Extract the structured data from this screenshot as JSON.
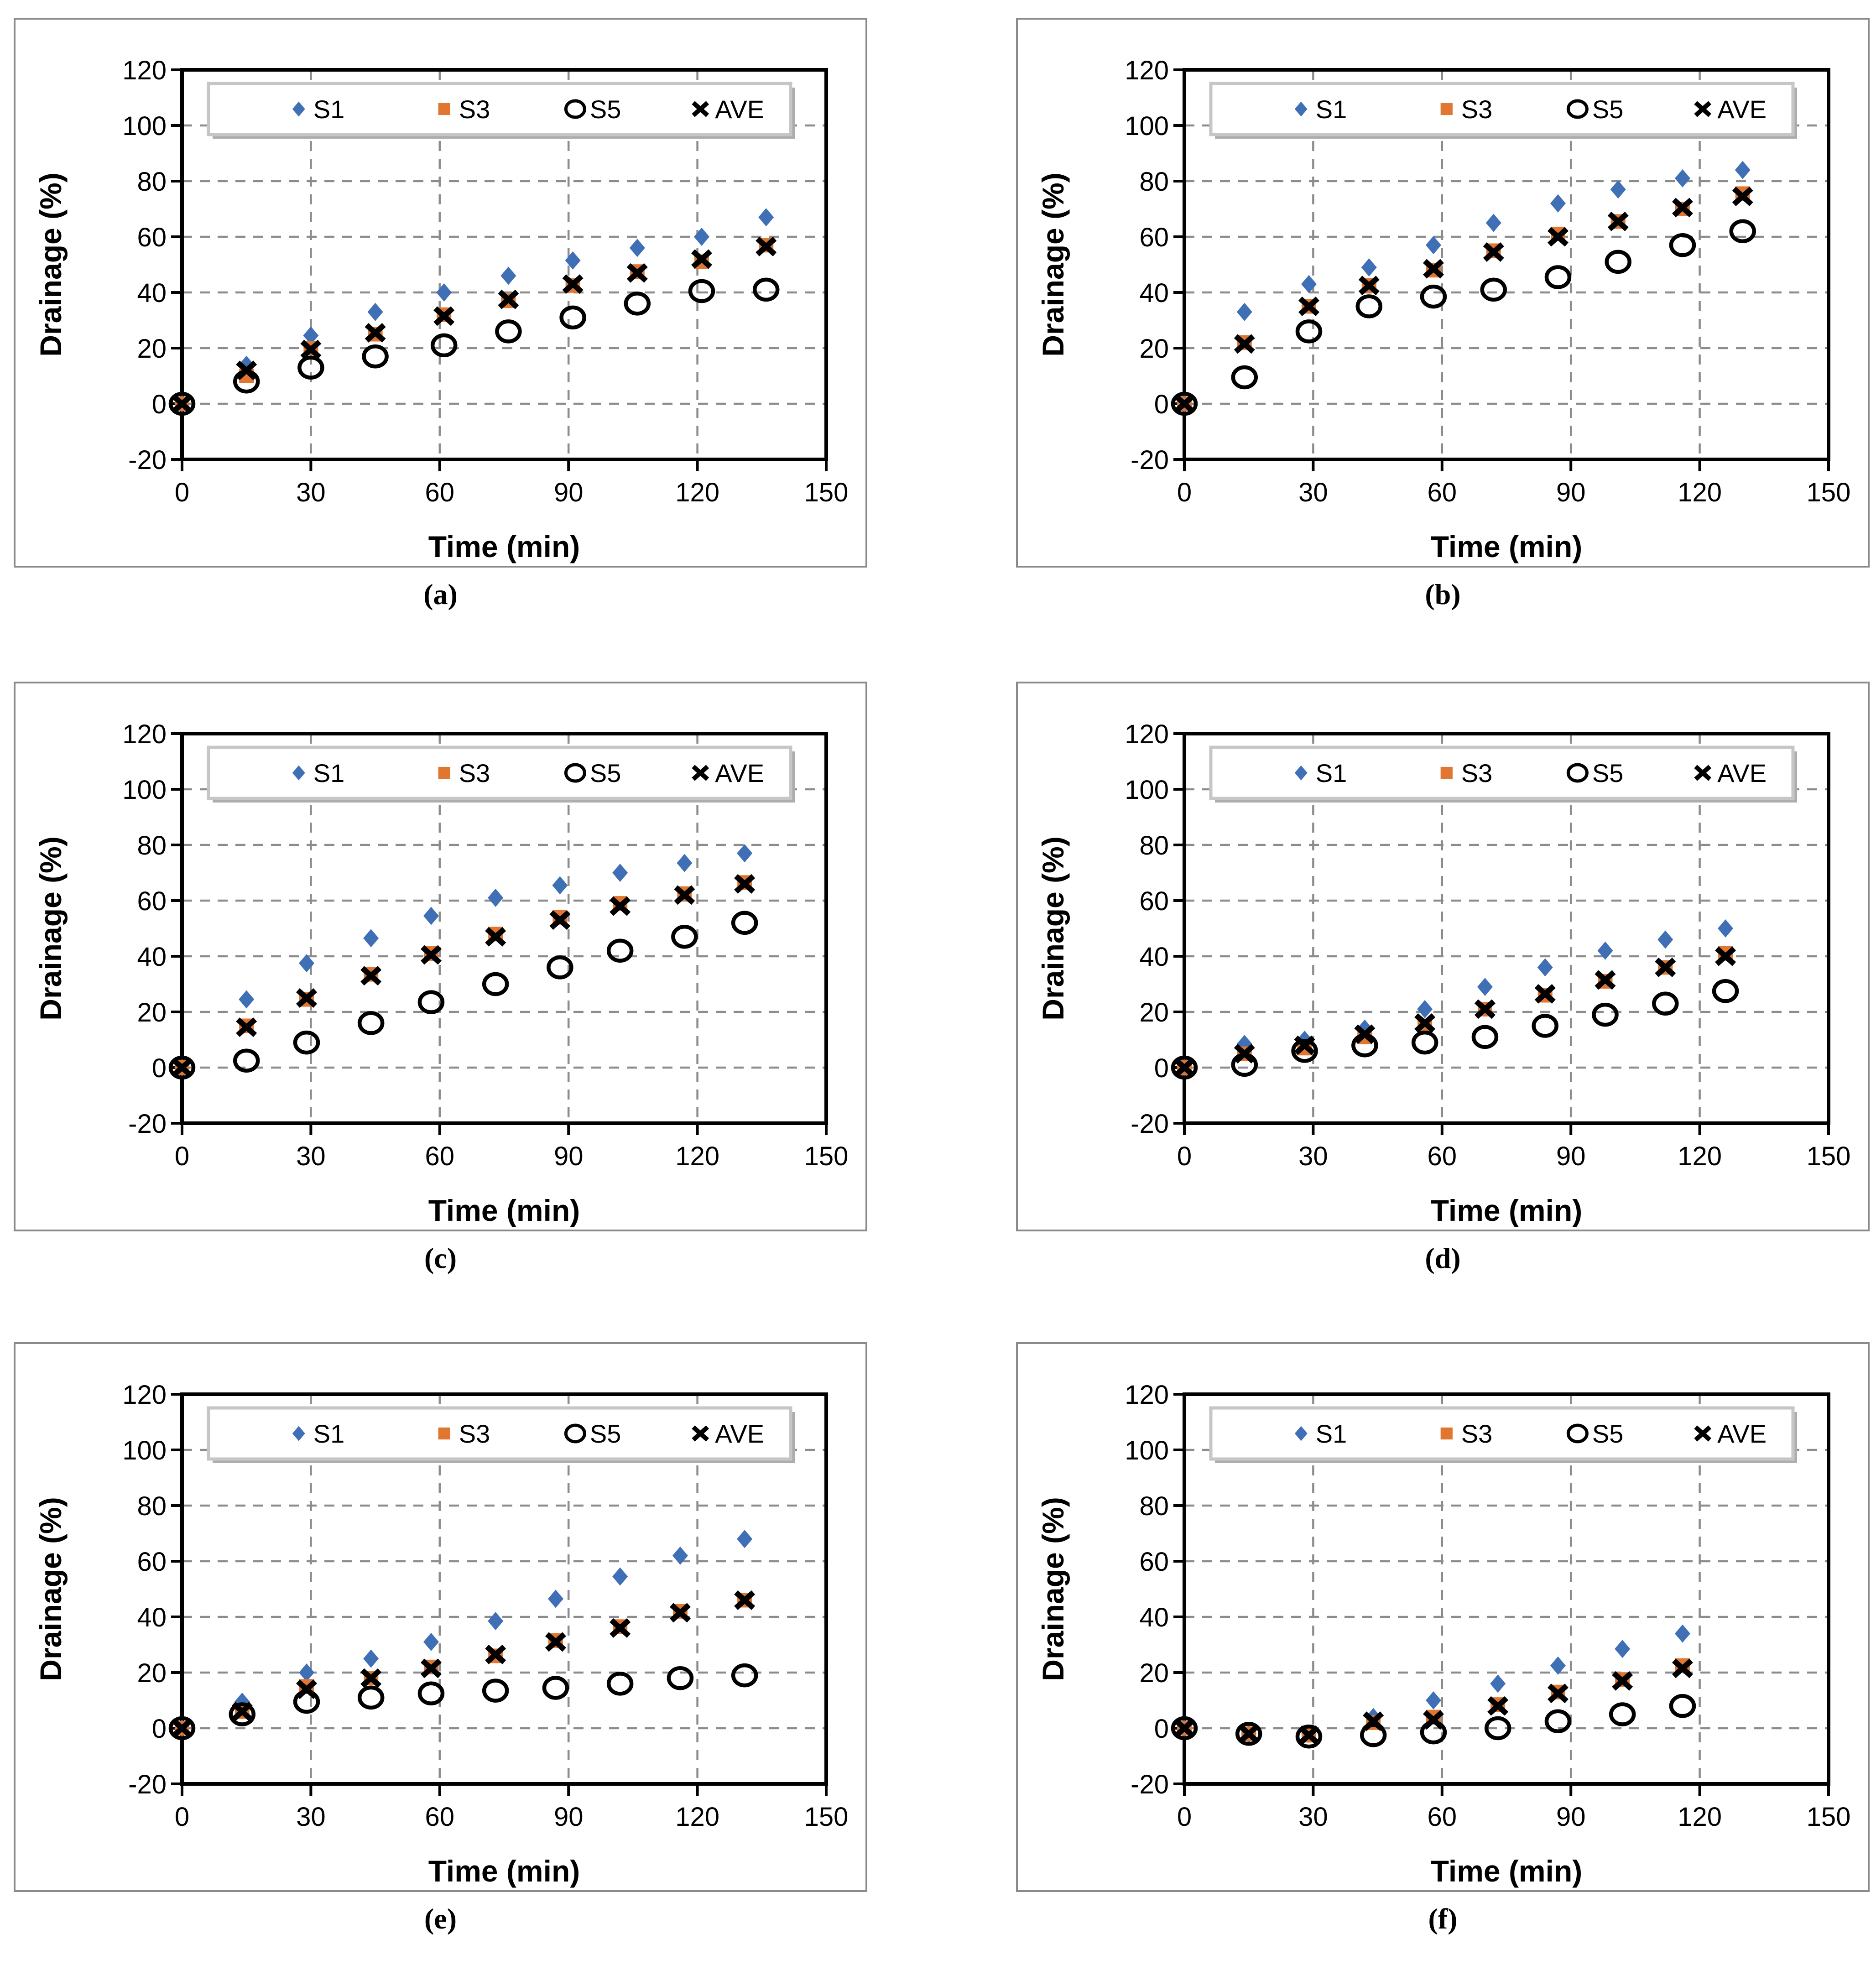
{
  "figure": {
    "panel_count": 6,
    "xlabel": "Time (min)",
    "ylabel": "Drainage (%)"
  },
  "styles": {
    "series_blue": "#3F6FB5",
    "series_orange": "#E0762F",
    "series_black": "#000000",
    "grid_color": "#8C8C8C",
    "plot_border_color": "#000000",
    "frame_border_color": "#8A8A8A",
    "legend_border_color": "#C6C6C6",
    "legend_shadow_color": "#ADADAD"
  },
  "chart_data": [
    {
      "type": "scatter",
      "panel_label": "(a)",
      "xlabel": "Time (min)",
      "ylabel": "Drainage (%)",
      "xlim": [
        0,
        150
      ],
      "ylim": [
        -20,
        120
      ],
      "xticks": [
        0,
        30,
        60,
        90,
        120,
        150
      ],
      "yticks": [
        -20,
        0,
        20,
        40,
        60,
        80,
        100,
        120
      ],
      "grid": true,
      "legend_position": "top-inside",
      "series": [
        {
          "name": "S1",
          "marker": "diamond",
          "color": "#3F6FB5",
          "x": [
            0,
            15,
            30,
            45,
            61,
            76,
            91,
            106,
            121,
            136
          ],
          "y": [
            0,
            14,
            24.5,
            33,
            40,
            46,
            51.5,
            56,
            60,
            67
          ]
        },
        {
          "name": "S3",
          "marker": "square",
          "color": "#E0762F",
          "x": [
            0,
            15,
            30,
            45,
            61,
            76,
            91,
            106,
            121,
            136
          ],
          "y": [
            0,
            10,
            20,
            25,
            32,
            37,
            42.5,
            47.5,
            51,
            57
          ]
        },
        {
          "name": "S5",
          "marker": "circle-open",
          "color": "#000000",
          "x": [
            0,
            15,
            30,
            45,
            61,
            76,
            91,
            106,
            121,
            136
          ],
          "y": [
            0,
            8,
            13,
            17,
            21,
            26,
            31,
            36,
            40.5,
            41
          ]
        },
        {
          "name": "AVE",
          "marker": "x",
          "color": "#000000",
          "x": [
            0,
            15,
            30,
            45,
            61,
            76,
            91,
            106,
            121,
            136
          ],
          "y": [
            0,
            12,
            19.5,
            25.5,
            31.5,
            37.5,
            43,
            47,
            52,
            56.5
          ]
        }
      ]
    },
    {
      "type": "scatter",
      "panel_label": "(b)",
      "xlabel": "Time (min)",
      "ylabel": "Drainage (%)",
      "xlim": [
        0,
        150
      ],
      "ylim": [
        -20,
        120
      ],
      "xticks": [
        0,
        30,
        60,
        90,
        120,
        150
      ],
      "yticks": [
        -20,
        0,
        20,
        40,
        60,
        80,
        100,
        120
      ],
      "grid": true,
      "legend_position": "top-inside",
      "series": [
        {
          "name": "S1",
          "marker": "diamond",
          "color": "#3F6FB5",
          "x": [
            0,
            14,
            29,
            43,
            58,
            72,
            87,
            101,
            116,
            130
          ],
          "y": [
            0,
            33,
            43,
            49,
            57,
            65,
            72,
            77,
            81,
            84
          ]
        },
        {
          "name": "S3",
          "marker": "square",
          "color": "#E0762F",
          "x": [
            0,
            14,
            29,
            43,
            58,
            72,
            87,
            101,
            116,
            130
          ],
          "y": [
            0,
            22,
            35,
            42.5,
            48,
            55,
            61,
            65.5,
            70,
            75.5
          ]
        },
        {
          "name": "S5",
          "marker": "circle-open",
          "color": "#000000",
          "x": [
            0,
            14,
            29,
            43,
            58,
            72,
            87,
            101,
            116,
            130
          ],
          "y": [
            0,
            9.5,
            26,
            35,
            38.5,
            41,
            45.5,
            51,
            57,
            62
          ]
        },
        {
          "name": "AVE",
          "marker": "x",
          "color": "#000000",
          "x": [
            0,
            14,
            29,
            43,
            58,
            72,
            87,
            101,
            116,
            130
          ],
          "y": [
            0,
            21.5,
            35,
            42.5,
            48.5,
            54.5,
            60,
            65.5,
            70.5,
            74.5
          ]
        }
      ]
    },
    {
      "type": "scatter",
      "panel_label": "(c)",
      "xlabel": "Time (min)",
      "ylabel": "Drainage (%)",
      "xlim": [
        0,
        150
      ],
      "ylim": [
        -20,
        120
      ],
      "xticks": [
        0,
        30,
        60,
        90,
        120,
        150
      ],
      "yticks": [
        -20,
        0,
        20,
        40,
        60,
        80,
        100,
        120
      ],
      "grid": true,
      "legend_position": "top-inside",
      "series": [
        {
          "name": "S1",
          "marker": "diamond",
          "color": "#3F6FB5",
          "x": [
            0,
            15,
            29,
            44,
            58,
            73,
            88,
            102,
            117,
            131
          ],
          "y": [
            0,
            24.5,
            37.5,
            46.5,
            54.5,
            61,
            65.5,
            70,
            73.5,
            77
          ]
        },
        {
          "name": "S3",
          "marker": "square",
          "color": "#E0762F",
          "x": [
            0,
            15,
            29,
            44,
            58,
            73,
            88,
            102,
            117,
            131
          ],
          "y": [
            0,
            15,
            24.5,
            33.5,
            41,
            48,
            54,
            59,
            62.5,
            66.5
          ]
        },
        {
          "name": "S5",
          "marker": "circle-open",
          "color": "#000000",
          "x": [
            0,
            15,
            29,
            44,
            58,
            73,
            88,
            102,
            117,
            131
          ],
          "y": [
            0,
            2.5,
            9,
            16,
            23.5,
            30,
            36,
            42,
            47,
            52
          ]
        },
        {
          "name": "AVE",
          "marker": "x",
          "color": "#000000",
          "x": [
            0,
            15,
            29,
            44,
            58,
            73,
            88,
            102,
            117,
            131
          ],
          "y": [
            0,
            14.5,
            25,
            33,
            40.5,
            47,
            53,
            58,
            62,
            66
          ]
        }
      ]
    },
    {
      "type": "scatter",
      "panel_label": "(d)",
      "xlabel": "Time (min)",
      "ylabel": "Drainage (%)",
      "xlim": [
        0,
        150
      ],
      "ylim": [
        -20,
        120
      ],
      "xticks": [
        0,
        30,
        60,
        90,
        120,
        150
      ],
      "yticks": [
        -20,
        0,
        20,
        40,
        60,
        80,
        100,
        120
      ],
      "grid": true,
      "legend_position": "top-inside",
      "series": [
        {
          "name": "S1",
          "marker": "diamond",
          "color": "#3F6FB5",
          "x": [
            0,
            14,
            28,
            42,
            56,
            70,
            84,
            98,
            112,
            126
          ],
          "y": [
            0,
            8.5,
            10,
            14,
            21,
            29,
            36,
            42,
            46,
            50
          ]
        },
        {
          "name": "S3",
          "marker": "square",
          "color": "#E0762F",
          "x": [
            0,
            14,
            28,
            42,
            56,
            70,
            84,
            98,
            112,
            126
          ],
          "y": [
            0,
            5,
            7,
            11,
            15,
            21,
            26,
            31,
            36,
            41
          ]
        },
        {
          "name": "S5",
          "marker": "circle-open",
          "color": "#000000",
          "x": [
            0,
            14,
            28,
            42,
            56,
            70,
            84,
            98,
            112,
            126
          ],
          "y": [
            0,
            1,
            6,
            8,
            9,
            11,
            15,
            19,
            23,
            27.5
          ]
        },
        {
          "name": "AVE",
          "marker": "x",
          "color": "#000000",
          "x": [
            0,
            14,
            28,
            42,
            56,
            70,
            84,
            98,
            112,
            126
          ],
          "y": [
            0,
            5,
            8,
            12,
            16,
            21,
            26.5,
            31.5,
            36,
            40
          ]
        }
      ]
    },
    {
      "type": "scatter",
      "panel_label": "(e)",
      "xlabel": "Time (min)",
      "ylabel": "Drainage (%)",
      "xlim": [
        0,
        150
      ],
      "ylim": [
        -20,
        120
      ],
      "xticks": [
        0,
        30,
        60,
        90,
        120,
        150
      ],
      "yticks": [
        -20,
        0,
        20,
        40,
        60,
        80,
        100,
        120
      ],
      "grid": true,
      "legend_position": "top-inside",
      "series": [
        {
          "name": "S1",
          "marker": "diamond",
          "color": "#3F6FB5",
          "x": [
            0,
            14,
            29,
            44,
            58,
            73,
            87,
            102,
            116,
            131
          ],
          "y": [
            0,
            9.5,
            20,
            25,
            31,
            38.5,
            46.5,
            54.5,
            62,
            68
          ]
        },
        {
          "name": "S3",
          "marker": "square",
          "color": "#E0762F",
          "x": [
            0,
            14,
            29,
            44,
            58,
            73,
            87,
            102,
            116,
            131
          ],
          "y": [
            0,
            6,
            15,
            18,
            22,
            26,
            31.5,
            36.5,
            42,
            46
          ]
        },
        {
          "name": "S5",
          "marker": "circle-open",
          "color": "#000000",
          "x": [
            0,
            14,
            29,
            44,
            58,
            73,
            87,
            102,
            116,
            131
          ],
          "y": [
            0,
            5,
            9.5,
            11,
            12.5,
            13.5,
            14.5,
            16,
            18,
            19
          ]
        },
        {
          "name": "AVE",
          "marker": "x",
          "color": "#000000",
          "x": [
            0,
            14,
            29,
            44,
            58,
            73,
            87,
            102,
            116,
            131
          ],
          "y": [
            0,
            6,
            14,
            18,
            21.5,
            26.5,
            31,
            36,
            41.5,
            46
          ]
        }
      ]
    },
    {
      "type": "scatter",
      "panel_label": "(f)",
      "xlabel": "Time (min)",
      "ylabel": "Drainage (%)",
      "xlim": [
        0,
        150
      ],
      "ylim": [
        -20,
        120
      ],
      "xticks": [
        0,
        30,
        60,
        90,
        120,
        150
      ],
      "yticks": [
        -20,
        0,
        20,
        40,
        60,
        80,
        100,
        120
      ],
      "grid": true,
      "legend_position": "top-inside",
      "series": [
        {
          "name": "S1",
          "marker": "diamond",
          "color": "#3F6FB5",
          "x": [
            0,
            15,
            29,
            44,
            58,
            73,
            87,
            102,
            116
          ],
          "y": [
            0,
            -2,
            -2,
            4,
            10,
            16,
            22.5,
            28.5,
            34
          ]
        },
        {
          "name": "S3",
          "marker": "square",
          "color": "#E0762F",
          "x": [
            0,
            15,
            29,
            44,
            58,
            73,
            87,
            102,
            116
          ],
          "y": [
            0,
            -2,
            -2.5,
            2,
            4,
            8.5,
            13,
            17.5,
            22.5
          ]
        },
        {
          "name": "S5",
          "marker": "circle-open",
          "color": "#000000",
          "x": [
            0,
            15,
            29,
            44,
            58,
            73,
            87,
            102,
            116
          ],
          "y": [
            0,
            -2,
            -3,
            -2.5,
            -1.5,
            0,
            2.5,
            5,
            8
          ]
        },
        {
          "name": "AVE",
          "marker": "x",
          "color": "#000000",
          "x": [
            0,
            15,
            29,
            44,
            58,
            73,
            87,
            102,
            116
          ],
          "y": [
            0,
            -2,
            -2.5,
            2.5,
            3,
            8,
            12.5,
            17,
            21.5
          ]
        }
      ]
    }
  ]
}
